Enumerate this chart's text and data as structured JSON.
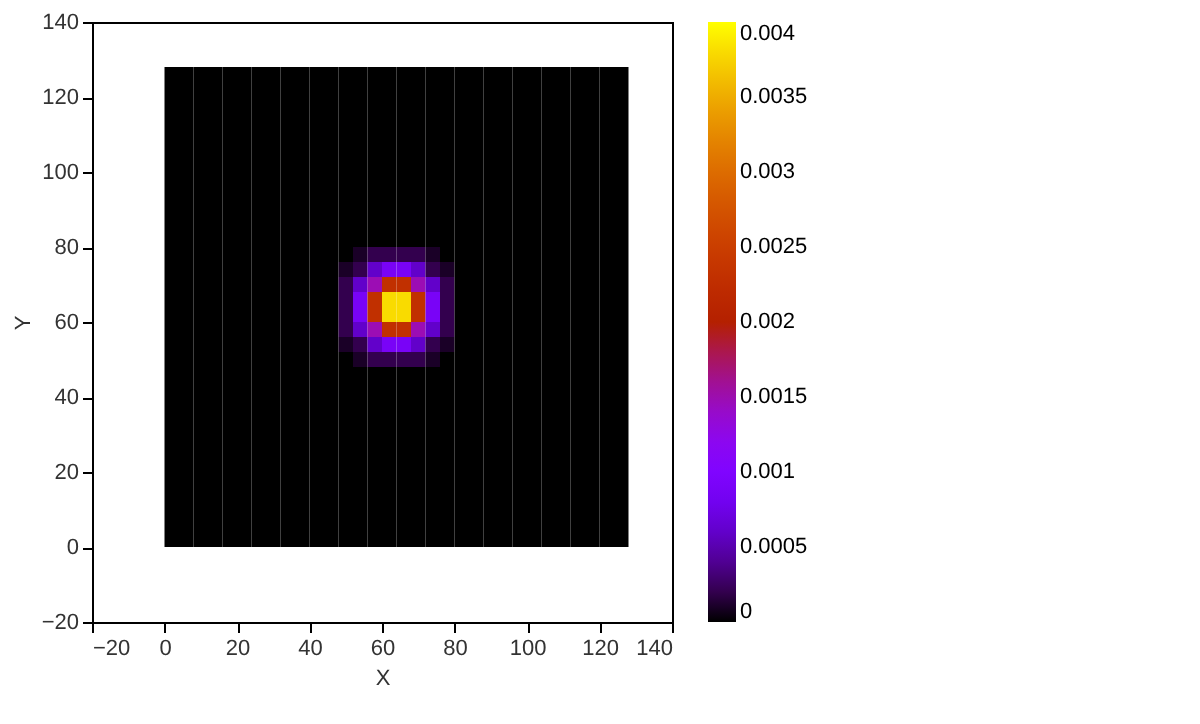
{
  "chart_data": {
    "type": "heatmap",
    "xlabel": "X",
    "ylabel": "Y",
    "x": [
      2,
      6,
      10,
      14,
      18,
      22,
      26,
      30,
      34,
      38,
      42,
      46,
      50,
      54,
      58,
      62,
      66,
      70,
      74,
      78,
      82,
      86,
      90,
      94,
      98,
      102,
      106,
      110,
      114,
      118,
      122,
      126
    ],
    "y": [
      126,
      122,
      118,
      114,
      110,
      106,
      102,
      98,
      94,
      90,
      86,
      82,
      78,
      74,
      70,
      66,
      62,
      58,
      54,
      50,
      46,
      42,
      38,
      34,
      30,
      26,
      22,
      18,
      14,
      10,
      6,
      2
    ],
    "cells": [
      [
        0,
        0,
        0,
        0,
        0,
        0,
        0,
        0,
        0,
        0,
        0,
        0,
        0,
        0,
        0,
        0,
        0,
        0,
        0,
        0,
        0,
        0,
        0,
        0,
        0,
        0,
        0,
        0,
        0,
        0,
        0,
        0
      ],
      [
        0,
        0,
        0,
        0,
        0,
        0,
        0,
        0,
        0,
        0,
        0,
        0,
        0,
        0,
        0,
        0,
        0,
        0,
        0,
        0,
        0,
        0,
        0,
        0,
        0,
        0,
        0,
        0,
        0,
        0,
        0,
        0
      ],
      [
        0,
        0,
        0,
        0,
        0,
        0,
        0,
        0,
        0,
        0,
        0,
        0,
        0,
        0,
        0,
        0,
        0,
        0,
        0,
        0,
        0,
        0,
        0,
        0,
        0,
        0,
        0,
        0,
        0,
        0,
        0,
        0
      ],
      [
        0,
        0,
        0,
        0,
        0,
        0,
        0,
        0,
        0,
        0,
        0,
        0,
        0,
        0,
        0,
        0,
        0,
        0,
        0,
        0,
        0,
        0,
        0,
        0,
        0,
        0,
        0,
        0,
        0,
        0,
        0,
        0
      ],
      [
        0,
        0,
        0,
        0,
        0,
        0,
        0,
        0,
        0,
        0,
        0,
        0,
        0,
        0,
        0,
        0,
        0,
        0,
        0,
        0,
        0,
        0,
        0,
        0,
        0,
        0,
        0,
        0,
        0,
        0,
        0,
        0
      ],
      [
        0,
        0,
        0,
        0,
        0,
        0,
        0,
        0,
        0,
        0,
        0,
        0,
        0,
        0,
        0,
        0,
        0,
        0,
        0,
        0,
        0,
        0,
        0,
        0,
        0,
        0,
        0,
        0,
        0,
        0,
        0,
        0
      ],
      [
        0,
        0,
        0,
        0,
        0,
        0,
        0,
        0,
        0,
        0,
        0,
        0,
        0,
        0,
        0,
        0,
        0,
        0,
        0,
        0,
        0,
        0,
        0,
        0,
        0,
        0,
        0,
        0,
        0,
        0,
        0,
        0
      ],
      [
        0,
        0,
        0,
        0,
        0,
        0,
        0,
        0,
        0,
        0,
        0,
        0,
        0,
        0,
        0,
        0,
        0,
        0,
        0,
        0,
        0,
        0,
        0,
        0,
        0,
        0,
        0,
        0,
        0,
        0,
        0,
        0
      ],
      [
        0,
        0,
        0,
        0,
        0,
        0,
        0,
        0,
        0,
        0,
        0,
        0,
        0,
        0,
        0,
        0,
        0,
        0,
        0,
        0,
        0,
        0,
        0,
        0,
        0,
        0,
        0,
        0,
        0,
        0,
        0,
        0
      ],
      [
        0,
        0,
        0,
        0,
        0,
        0,
        0,
        0,
        0,
        0,
        0,
        0,
        0,
        0,
        0,
        0,
        0,
        0,
        0,
        0,
        0,
        0,
        0,
        0,
        0,
        0,
        0,
        0,
        0,
        0,
        0,
        0
      ],
      [
        0,
        0,
        0,
        0,
        0,
        0,
        0,
        0,
        0,
        0,
        0,
        0,
        0,
        0,
        0,
        0,
        0,
        0,
        0,
        0,
        0,
        0,
        0,
        0,
        0,
        0,
        0,
        0,
        0,
        0,
        0,
        0
      ],
      [
        0,
        0,
        0,
        0,
        0,
        0,
        0,
        0,
        0,
        0,
        0,
        0,
        0,
        0,
        0,
        0,
        0,
        0,
        0,
        0,
        0,
        0,
        0,
        0,
        0,
        0,
        0,
        0,
        0,
        0,
        0,
        0
      ],
      [
        0,
        0,
        0,
        0,
        0,
        0,
        0,
        0,
        0,
        0,
        0,
        0,
        0,
        0.0001,
        0.0002,
        0.0002,
        0.0002,
        0.0002,
        0.0001,
        0,
        0,
        0,
        0,
        0,
        0,
        0,
        0,
        0,
        0,
        0,
        0,
        0
      ],
      [
        0,
        0,
        0,
        0,
        0,
        0,
        0,
        0,
        0,
        0,
        0,
        0,
        0.0001,
        0.0002,
        0.0006,
        0.0009,
        0.0009,
        0.0006,
        0.0002,
        0.0001,
        0,
        0,
        0,
        0,
        0,
        0,
        0,
        0,
        0,
        0,
        0,
        0
      ],
      [
        0,
        0,
        0,
        0,
        0,
        0,
        0,
        0,
        0,
        0,
        0,
        0,
        0.0002,
        0.0006,
        0.0015,
        0.0023,
        0.0023,
        0.0015,
        0.0006,
        0.0002,
        0,
        0,
        0,
        0,
        0,
        0,
        0,
        0,
        0,
        0,
        0,
        0
      ],
      [
        0,
        0,
        0,
        0,
        0,
        0,
        0,
        0,
        0,
        0,
        0,
        0,
        0.0002,
        0.0009,
        0.0023,
        0.0038,
        0.0038,
        0.0023,
        0.0009,
        0.0002,
        0,
        0,
        0,
        0,
        0,
        0,
        0,
        0,
        0,
        0,
        0,
        0
      ],
      [
        0,
        0,
        0,
        0,
        0,
        0,
        0,
        0,
        0,
        0,
        0,
        0,
        0.0002,
        0.0009,
        0.0023,
        0.0038,
        0.0038,
        0.0023,
        0.0009,
        0.0002,
        0,
        0,
        0,
        0,
        0,
        0,
        0,
        0,
        0,
        0,
        0,
        0
      ],
      [
        0,
        0,
        0,
        0,
        0,
        0,
        0,
        0,
        0,
        0,
        0,
        0,
        0.0002,
        0.0006,
        0.0015,
        0.0023,
        0.0023,
        0.0015,
        0.0006,
        0.0002,
        0,
        0,
        0,
        0,
        0,
        0,
        0,
        0,
        0,
        0,
        0,
        0
      ],
      [
        0,
        0,
        0,
        0,
        0,
        0,
        0,
        0,
        0,
        0,
        0,
        0,
        0.0001,
        0.0002,
        0.0006,
        0.0009,
        0.0009,
        0.0006,
        0.0002,
        0.0001,
        0,
        0,
        0,
        0,
        0,
        0,
        0,
        0,
        0,
        0,
        0,
        0
      ],
      [
        0,
        0,
        0,
        0,
        0,
        0,
        0,
        0,
        0,
        0,
        0,
        0,
        0,
        0.0001,
        0.0002,
        0.0002,
        0.0002,
        0.0002,
        0.0001,
        0,
        0,
        0,
        0,
        0,
        0,
        0,
        0,
        0,
        0,
        0,
        0,
        0
      ],
      [
        0,
        0,
        0,
        0,
        0,
        0,
        0,
        0,
        0,
        0,
        0,
        0,
        0,
        0,
        0,
        0,
        0,
        0,
        0,
        0,
        0,
        0,
        0,
        0,
        0,
        0,
        0,
        0,
        0,
        0,
        0,
        0
      ],
      [
        0,
        0,
        0,
        0,
        0,
        0,
        0,
        0,
        0,
        0,
        0,
        0,
        0,
        0,
        0,
        0,
        0,
        0,
        0,
        0,
        0,
        0,
        0,
        0,
        0,
        0,
        0,
        0,
        0,
        0,
        0,
        0
      ],
      [
        0,
        0,
        0,
        0,
        0,
        0,
        0,
        0,
        0,
        0,
        0,
        0,
        0,
        0,
        0,
        0,
        0,
        0,
        0,
        0,
        0,
        0,
        0,
        0,
        0,
        0,
        0,
        0,
        0,
        0,
        0,
        0
      ],
      [
        0,
        0,
        0,
        0,
        0,
        0,
        0,
        0,
        0,
        0,
        0,
        0,
        0,
        0,
        0,
        0,
        0,
        0,
        0,
        0,
        0,
        0,
        0,
        0,
        0,
        0,
        0,
        0,
        0,
        0,
        0,
        0
      ],
      [
        0,
        0,
        0,
        0,
        0,
        0,
        0,
        0,
        0,
        0,
        0,
        0,
        0,
        0,
        0,
        0,
        0,
        0,
        0,
        0,
        0,
        0,
        0,
        0,
        0,
        0,
        0,
        0,
        0,
        0,
        0,
        0
      ],
      [
        0,
        0,
        0,
        0,
        0,
        0,
        0,
        0,
        0,
        0,
        0,
        0,
        0,
        0,
        0,
        0,
        0,
        0,
        0,
        0,
        0,
        0,
        0,
        0,
        0,
        0,
        0,
        0,
        0,
        0,
        0,
        0
      ],
      [
        0,
        0,
        0,
        0,
        0,
        0,
        0,
        0,
        0,
        0,
        0,
        0,
        0,
        0,
        0,
        0,
        0,
        0,
        0,
        0,
        0,
        0,
        0,
        0,
        0,
        0,
        0,
        0,
        0,
        0,
        0,
        0
      ],
      [
        0,
        0,
        0,
        0,
        0,
        0,
        0,
        0,
        0,
        0,
        0,
        0,
        0,
        0,
        0,
        0,
        0,
        0,
        0,
        0,
        0,
        0,
        0,
        0,
        0,
        0,
        0,
        0,
        0,
        0,
        0,
        0
      ],
      [
        0,
        0,
        0,
        0,
        0,
        0,
        0,
        0,
        0,
        0,
        0,
        0,
        0,
        0,
        0,
        0,
        0,
        0,
        0,
        0,
        0,
        0,
        0,
        0,
        0,
        0,
        0,
        0,
        0,
        0,
        0,
        0
      ],
      [
        0,
        0,
        0,
        0,
        0,
        0,
        0,
        0,
        0,
        0,
        0,
        0,
        0,
        0,
        0,
        0,
        0,
        0,
        0,
        0,
        0,
        0,
        0,
        0,
        0,
        0,
        0,
        0,
        0,
        0,
        0,
        0
      ],
      [
        0,
        0,
        0,
        0,
        0,
        0,
        0,
        0,
        0,
        0,
        0,
        0,
        0,
        0,
        0,
        0,
        0,
        0,
        0,
        0,
        0,
        0,
        0,
        0,
        0,
        0,
        0,
        0,
        0,
        0,
        0,
        0
      ],
      [
        0,
        0,
        0,
        0,
        0,
        0,
        0,
        0,
        0,
        0,
        0,
        0,
        0,
        0,
        0,
        0,
        0,
        0,
        0,
        0,
        0,
        0,
        0,
        0,
        0,
        0,
        0,
        0,
        0,
        0,
        0,
        0
      ]
    ],
    "clim": [
      0,
      0.004
    ],
    "cticks": [
      0,
      0.0005,
      0.001,
      0.0015,
      0.002,
      0.0025,
      0.003,
      0.0035,
      0.004
    ],
    "xlim": [
      -20,
      140
    ],
    "xticks": [
      -20,
      0,
      20,
      40,
      60,
      80,
      100,
      120,
      140
    ],
    "ylim": [
      -20,
      140
    ],
    "yticks": [
      -20,
      0,
      20,
      40,
      60,
      80,
      100,
      120,
      140
    ],
    "grid": false
  }
}
